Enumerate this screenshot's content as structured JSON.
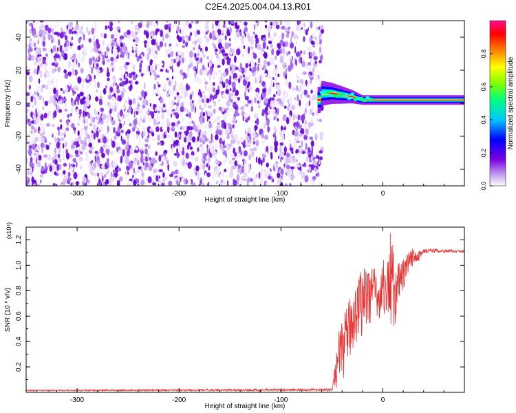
{
  "title": "C2E4.2025.004.04.13.R01",
  "chart_data": [
    {
      "type": "heatmap",
      "xlabel": "Height of straight line (km)",
      "ylabel": "Frequency (Hz)",
      "xlim": [
        -350,
        80
      ],
      "ylim": [
        -50,
        50
      ],
      "x_ticks": [
        -300,
        -200,
        -100,
        0
      ],
      "y_ticks": [
        -40,
        -20,
        0,
        20,
        40
      ],
      "colorbar": {
        "label": "Normalized spectral amplitude",
        "range": [
          0,
          1
        ],
        "ticks": [
          "0.0",
          "0.2",
          "0.4",
          "0.6",
          "0.8"
        ],
        "colors": [
          "#ffffff",
          "#8a00e6",
          "#0000ff",
          "#00ffff",
          "#00ff00",
          "#ffff00",
          "#ff8000",
          "#ff0000",
          "#ff0080"
        ]
      },
      "noise_region_x": [
        -350,
        -62
      ],
      "signal_ridge": [
        {
          "x": -60,
          "freq": 6
        },
        {
          "x": -50,
          "freq": 6
        },
        {
          "x": -40,
          "freq": 5
        },
        {
          "x": -30,
          "freq": 4
        },
        {
          "x": -20,
          "freq": 2
        },
        {
          "x": 0,
          "freq": 2
        },
        {
          "x": 20,
          "freq": 2
        },
        {
          "x": 80,
          "freq": 2
        }
      ]
    },
    {
      "type": "line",
      "xlabel": "Height of straight line (km)",
      "ylabel": "SNR (10 * v/v)",
      "y_multiplier": "(x10⁴)",
      "xlim": [
        -350,
        80
      ],
      "ylim": [
        0,
        1.3
      ],
      "x_ticks": [
        -300,
        -200,
        -100,
        0
      ],
      "y_ticks": [
        "0.2",
        "0.4",
        "0.6",
        "0.8",
        "1.0",
        "1.2"
      ],
      "line_color": "#e83030",
      "series": [
        {
          "envelope_low": [
            [
              -350,
              0.01
            ],
            [
              -50,
              0.01
            ],
            [
              -42,
              0.05
            ],
            [
              -36,
              0.15
            ],
            [
              -30,
              0.3
            ],
            [
              -20,
              0.45
            ],
            [
              -10,
              0.5
            ],
            [
              -5,
              0.55
            ],
            [
              0,
              0.6
            ],
            [
              5,
              0.5
            ],
            [
              10,
              0.45
            ],
            [
              20,
              0.8
            ],
            [
              30,
              1.0
            ],
            [
              45,
              1.1
            ],
            [
              80,
              1.1
            ]
          ],
          "envelope_high": [
            [
              -350,
              0.02
            ],
            [
              -50,
              0.03
            ],
            [
              -42,
              0.55
            ],
            [
              -36,
              0.65
            ],
            [
              -30,
              0.8
            ],
            [
              -20,
              1.0
            ],
            [
              -10,
              1.05
            ],
            [
              -5,
              0.85
            ],
            [
              0,
              1.05
            ],
            [
              5,
              1.05
            ],
            [
              8,
              1.3
            ],
            [
              12,
              1.0
            ],
            [
              20,
              1.05
            ],
            [
              30,
              1.15
            ],
            [
              45,
              1.13
            ],
            [
              80,
              1.12
            ]
          ]
        }
      ]
    }
  ]
}
